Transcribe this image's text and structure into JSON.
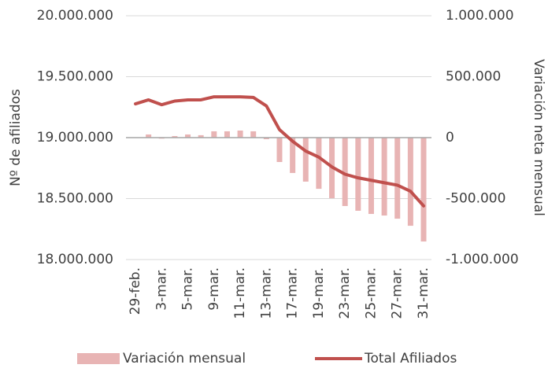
{
  "chart_data": {
    "type": "combo",
    "y_label": "Nº de afiliados",
    "y2_label": "Variación neta mensual",
    "categories": [
      "29-feb.",
      null,
      "3-mar.",
      null,
      "5-mar.",
      null,
      "9-mar.",
      null,
      "11-mar.",
      null,
      "13-mar.",
      null,
      "17-mar.",
      null,
      "19-mar.",
      null,
      "23-mar.",
      null,
      "25-mar.",
      null,
      "27-mar.",
      null,
      "31-mar."
    ],
    "ylim": [
      18000000,
      20000000
    ],
    "yticks": [
      {
        "value": 18000000,
        "label": "18.000.000"
      },
      {
        "value": 18500000,
        "label": "18.500.000"
      },
      {
        "value": 19000000,
        "label": "19.000.000"
      },
      {
        "value": 19500000,
        "label": "19.500.000"
      },
      {
        "value": 20000000,
        "label": "20.000.000"
      }
    ],
    "y2lim": [
      -1000000,
      1000000
    ],
    "y2ticks": [
      {
        "value": -1000000,
        "label": "-1.000.000"
      },
      {
        "value": -500000,
        "label": "-500.000"
      },
      0,
      {
        "value": 500000,
        "label": "500.000"
      },
      {
        "value": 1000000,
        "label": "1.000.000"
      }
    ],
    "grid": true,
    "legend": "bottom",
    "series": [
      {
        "name": "Variación mensual",
        "type": "bar",
        "axis": "y2",
        "color": "#e8b4b4",
        "values": [
          0,
          26000,
          -8000,
          13000,
          26000,
          20000,
          52000,
          52000,
          58000,
          52000,
          -13000,
          -200000,
          -290000,
          -361000,
          -420000,
          -497000,
          -561000,
          -600000,
          -626000,
          -639000,
          -665000,
          -723000,
          -852000
        ]
      },
      {
        "name": "Total Afiliados",
        "type": "line",
        "color": "#c0504d",
        "values": [
          19277000,
          19310000,
          19270000,
          19300000,
          19310000,
          19310000,
          19335000,
          19335000,
          19335000,
          19330000,
          19260000,
          19065000,
          18970000,
          18890000,
          18840000,
          18760000,
          18700000,
          18670000,
          18650000,
          18630000,
          18610000,
          18560000,
          18440000
        ]
      }
    ]
  }
}
